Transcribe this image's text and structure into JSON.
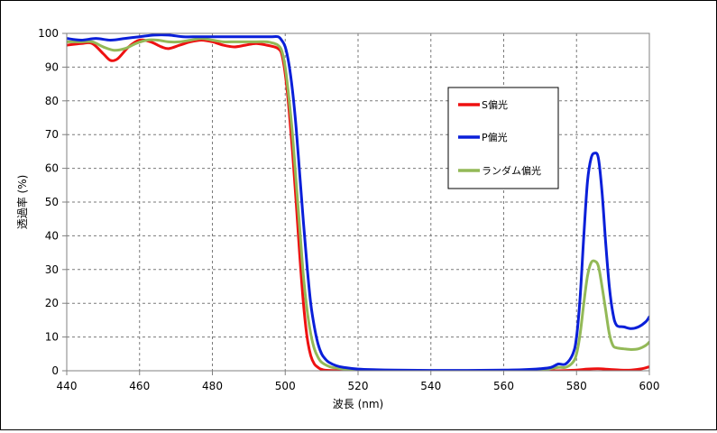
{
  "chart_data": {
    "type": "line",
    "title": "",
    "xlabel": "波長 (nm)",
    "ylabel": "透過率 (%)",
    "xlim": [
      440,
      600
    ],
    "ylim": [
      0,
      100
    ],
    "x_ticks": [
      "440",
      "460",
      "480",
      "500",
      "520",
      "540",
      "560",
      "580",
      "600"
    ],
    "y_ticks": [
      "0",
      "10",
      "20",
      "30",
      "40",
      "50",
      "60",
      "70",
      "80",
      "90",
      "100"
    ],
    "grid": true,
    "legend_position": "right-center",
    "series": [
      {
        "name": "S偏光",
        "color": "#ee1111",
        "points": [
          [
            440,
            96.5
          ],
          [
            444,
            97
          ],
          [
            447,
            97
          ],
          [
            450,
            94
          ],
          [
            452,
            92
          ],
          [
            454,
            92.5
          ],
          [
            457,
            96
          ],
          [
            460,
            98
          ],
          [
            463,
            97.5
          ],
          [
            466,
            96
          ],
          [
            468,
            95.5
          ],
          [
            471,
            96.5
          ],
          [
            474,
            97.5
          ],
          [
            477,
            98
          ],
          [
            480,
            97.5
          ],
          [
            483,
            96.5
          ],
          [
            486,
            96
          ],
          [
            489,
            96.5
          ],
          [
            492,
            97
          ],
          [
            495,
            96.5
          ],
          [
            497,
            96
          ],
          [
            498,
            95.5
          ],
          [
            499,
            94
          ],
          [
            500,
            88
          ],
          [
            501,
            78
          ],
          [
            502,
            65
          ],
          [
            503,
            50
          ],
          [
            504,
            34
          ],
          [
            505,
            20
          ],
          [
            506,
            10
          ],
          [
            507,
            4.5
          ],
          [
            508,
            2
          ],
          [
            509,
            1
          ],
          [
            510,
            0.4
          ],
          [
            512,
            0.1
          ],
          [
            520,
            0
          ],
          [
            540,
            0
          ],
          [
            560,
            0
          ],
          [
            570,
            0
          ],
          [
            575,
            0
          ],
          [
            580,
            0.2
          ],
          [
            583,
            0.5
          ],
          [
            586,
            0.6
          ],
          [
            589,
            0.4
          ],
          [
            592,
            0.2
          ],
          [
            595,
            0.2
          ],
          [
            598,
            0.6
          ],
          [
            600,
            1.2
          ]
        ]
      },
      {
        "name": "P偏光",
        "color": "#0a1fd9",
        "points": [
          [
            440,
            98.5
          ],
          [
            444,
            98
          ],
          [
            448,
            98.5
          ],
          [
            452,
            98
          ],
          [
            456,
            98.5
          ],
          [
            460,
            99
          ],
          [
            464,
            99.5
          ],
          [
            468,
            99.5
          ],
          [
            472,
            99
          ],
          [
            476,
            99
          ],
          [
            480,
            99
          ],
          [
            484,
            99
          ],
          [
            488,
            99
          ],
          [
            492,
            99
          ],
          [
            496,
            99
          ],
          [
            498,
            99
          ],
          [
            499,
            98
          ],
          [
            500,
            96
          ],
          [
            501,
            91
          ],
          [
            502,
            83
          ],
          [
            503,
            72
          ],
          [
            504,
            58
          ],
          [
            505,
            44
          ],
          [
            506,
            31
          ],
          [
            507,
            20
          ],
          [
            508,
            13
          ],
          [
            509,
            8
          ],
          [
            510,
            5
          ],
          [
            511,
            3.5
          ],
          [
            512,
            2.5
          ],
          [
            514,
            1.5
          ],
          [
            516,
            1
          ],
          [
            520,
            0.5
          ],
          [
            525,
            0.3
          ],
          [
            530,
            0.2
          ],
          [
            540,
            0.1
          ],
          [
            550,
            0.1
          ],
          [
            560,
            0.2
          ],
          [
            565,
            0.3
          ],
          [
            570,
            0.6
          ],
          [
            573,
            1
          ],
          [
            575,
            2
          ],
          [
            577,
            2
          ],
          [
            579,
            5
          ],
          [
            580,
            10
          ],
          [
            581,
            22
          ],
          [
            582,
            40
          ],
          [
            583,
            56
          ],
          [
            584,
            63
          ],
          [
            585,
            64.5
          ],
          [
            586,
            63
          ],
          [
            587,
            53
          ],
          [
            588,
            38
          ],
          [
            589,
            25
          ],
          [
            590,
            17
          ],
          [
            591,
            13.5
          ],
          [
            593,
            13
          ],
          [
            595,
            12.5
          ],
          [
            597,
            13
          ],
          [
            599,
            14.5
          ],
          [
            600,
            16
          ]
        ]
      },
      {
        "name": "ランダム偏光",
        "color": "#93b957",
        "points": [
          [
            440,
            97.5
          ],
          [
            444,
            97.5
          ],
          [
            447,
            97.5
          ],
          [
            450,
            96
          ],
          [
            453,
            95
          ],
          [
            456,
            95.5
          ],
          [
            459,
            97
          ],
          [
            462,
            98
          ],
          [
            465,
            98
          ],
          [
            468,
            97.5
          ],
          [
            471,
            97.5
          ],
          [
            474,
            98
          ],
          [
            477,
            98.5
          ],
          [
            480,
            98
          ],
          [
            483,
            97.5
          ],
          [
            486,
            97.5
          ],
          [
            489,
            97.5
          ],
          [
            492,
            97.5
          ],
          [
            495,
            97.5
          ],
          [
            497,
            97
          ],
          [
            498,
            96.5
          ],
          [
            499,
            95
          ],
          [
            500,
            90
          ],
          [
            501,
            81
          ],
          [
            502,
            70
          ],
          [
            503,
            56
          ],
          [
            504,
            42
          ],
          [
            505,
            28
          ],
          [
            506,
            18
          ],
          [
            507,
            11
          ],
          [
            508,
            6.5
          ],
          [
            509,
            4
          ],
          [
            510,
            2.5
          ],
          [
            512,
            1.3
          ],
          [
            514,
            0.8
          ],
          [
            520,
            0.2
          ],
          [
            530,
            0.1
          ],
          [
            540,
            0
          ],
          [
            560,
            0
          ],
          [
            570,
            0.3
          ],
          [
            575,
            1
          ],
          [
            577,
            1
          ],
          [
            579,
            2.5
          ],
          [
            580,
            5
          ],
          [
            581,
            11
          ],
          [
            582,
            20
          ],
          [
            583,
            28
          ],
          [
            584,
            32
          ],
          [
            585,
            32.5
          ],
          [
            586,
            31
          ],
          [
            587,
            25
          ],
          [
            588,
            18
          ],
          [
            589,
            11
          ],
          [
            590,
            7.5
          ],
          [
            591,
            6.8
          ],
          [
            593,
            6.5
          ],
          [
            595,
            6.3
          ],
          [
            597,
            6.5
          ],
          [
            599,
            7.5
          ],
          [
            600,
            8.5
          ]
        ]
      }
    ]
  }
}
